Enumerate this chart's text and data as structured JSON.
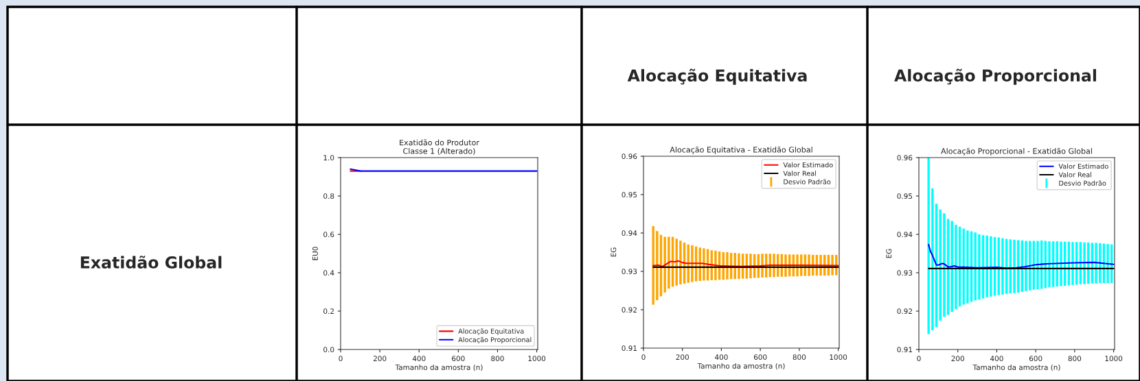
{
  "chart_data": [
    {
      "type": "other",
      "annotations": [
        "Alocação Equitativa",
        "Alocação Proporcional",
        "Exatidão Global"
      ]
    },
    {
      "type": "line",
      "title": "Exatidão do Produtor\nClasse 1 (Alterado)",
      "xlabel": "Tamanho da amostra (n)",
      "ylabel": "EU0",
      "xlim": [
        0,
        1005
      ],
      "ylim": [
        0.0,
        1.0
      ],
      "xticks": [
        0,
        200,
        400,
        600,
        800,
        1000
      ],
      "yticks": [
        {
          "value": 0,
          "label": "0.0"
        },
        0.2,
        0.4,
        0.6,
        0.8,
        {
          "value": 1,
          "label": "1.0"
        }
      ],
      "legend": "bottom right",
      "grid": false,
      "series": [
        {
          "name": "Alocação Equitativa",
          "color": "#ff0000",
          "x": [
            50,
            100
          ],
          "values": [
            0.93,
            0.93
          ]
        },
        {
          "name": "Alocação Proporcional",
          "color": "#0000ff",
          "x": [
            50,
            100,
            200,
            400,
            600,
            800,
            1000
          ],
          "values": [
            0.94,
            0.93,
            0.93,
            0.93,
            0.93,
            0.93,
            0.93
          ]
        }
      ]
    },
    {
      "type": "line",
      "title": "Alocação Equitativa - Exatidão Global",
      "xlabel": "Tamanho da amostra (n)",
      "ylabel": "EG",
      "xlim": [
        0,
        1005
      ],
      "ylim": [
        0.91,
        0.96
      ],
      "xticks": [
        0,
        200,
        400,
        600,
        800,
        1000
      ],
      "yticks": [
        0.91,
        0.92,
        0.93,
        0.94,
        0.95,
        0.96
      ],
      "legend": "top right",
      "grid": false,
      "series": [
        {
          "name": "Valor Estimado",
          "color": "#ff0000",
          "x": [
            50,
            80,
            90,
            100,
            120,
            140,
            160,
            180,
            200,
            220,
            300,
            340,
            400,
            500,
            600,
            650,
            800,
            1000
          ],
          "values": [
            0.9315,
            0.9316,
            0.9313,
            0.9313,
            0.932,
            0.9326,
            0.9325,
            0.9327,
            0.9323,
            0.9321,
            0.9321,
            0.9318,
            0.9314,
            0.9313,
            0.9314,
            0.9316,
            0.9316,
            0.9315
          ]
        },
        {
          "name": "Valor Real",
          "color": "#000000",
          "x": [
            50,
            1000
          ],
          "values": [
            0.9311,
            0.9311
          ]
        },
        {
          "name": "Desvio Padrão",
          "type": "bar",
          "color": "#ffa500",
          "x": [
            50,
            70,
            90,
            110,
            130,
            150,
            170,
            190,
            210,
            230,
            250,
            270,
            290,
            310,
            330,
            350,
            370,
            390,
            410,
            430,
            450,
            470,
            490,
            510,
            530,
            550,
            570,
            590,
            610,
            630,
            650,
            670,
            690,
            710,
            730,
            750,
            770,
            790,
            810,
            830,
            850,
            870,
            890,
            910,
            930,
            950,
            970,
            990
          ],
          "base": [
            0.9213,
            0.9225,
            0.9235,
            0.9245,
            0.9255,
            0.926,
            0.9263,
            0.9266,
            0.9268,
            0.927,
            0.9272,
            0.9274,
            0.9275,
            0.9276,
            0.9276,
            0.9277,
            0.9277,
            0.9278,
            0.9278,
            0.9279,
            0.928,
            0.928,
            0.928,
            0.9281,
            0.9281,
            0.9282,
            0.9283,
            0.9283,
            0.9284,
            0.9284,
            0.9285,
            0.9285,
            0.9286,
            0.9286,
            0.9286,
            0.9287,
            0.9287,
            0.9287,
            0.9288,
            0.9288,
            0.9288,
            0.9289,
            0.9289,
            0.9289,
            0.9289,
            0.9289,
            0.929,
            0.929
          ],
          "values": [
            0.0205,
            0.018,
            0.016,
            0.0145,
            0.0135,
            0.013,
            0.0122,
            0.0114,
            0.0107,
            0.01,
            0.0096,
            0.0091,
            0.0087,
            0.0084,
            0.0082,
            0.0078,
            0.0077,
            0.0074,
            0.0072,
            0.0071,
            0.0068,
            0.0068,
            0.0067,
            0.0065,
            0.0065,
            0.0064,
            0.0062,
            0.0062,
            0.0062,
            0.0062,
            0.0061,
            0.0061,
            0.0059,
            0.0059,
            0.0058,
            0.0057,
            0.0057,
            0.0057,
            0.0056,
            0.0056,
            0.0056,
            0.0054,
            0.0054,
            0.0054,
            0.0054,
            0.0054,
            0.0053,
            0.0053
          ]
        }
      ]
    },
    {
      "type": "line",
      "title": "Alocação Proporcional - Exatidão Global",
      "xlabel": "Tamanho da amostra (n)",
      "ylabel": "EG",
      "xlim": [
        0,
        1005
      ],
      "ylim": [
        0.91,
        0.96
      ],
      "xticks": [
        0,
        200,
        400,
        600,
        800,
        1000
      ],
      "yticks": [
        0.91,
        0.92,
        0.93,
        0.94,
        0.95,
        0.96
      ],
      "legend": "top right",
      "grid": false,
      "series": [
        {
          "name": "Valor Estimado",
          "color": "#0000ff",
          "x": [
            50,
            60,
            70,
            90,
            100,
            120,
            130,
            150,
            170,
            180,
            200,
            250,
            300,
            400,
            450,
            500,
            550,
            600,
            650,
            700,
            800,
            900,
            1000
          ],
          "values": [
            0.9373,
            0.9355,
            0.9345,
            0.932,
            0.932,
            0.9324,
            0.9323,
            0.9315,
            0.9316,
            0.9318,
            0.9315,
            0.9314,
            0.9313,
            0.9314,
            0.9312,
            0.9313,
            0.9316,
            0.9321,
            0.9323,
            0.9324,
            0.9326,
            0.9327,
            0.9322
          ]
        },
        {
          "name": "Valor Real",
          "color": "#000000",
          "x": [
            50,
            1000
          ],
          "values": [
            0.9311,
            0.9311
          ]
        },
        {
          "name": "Desvio Padrão",
          "type": "bar",
          "color": "#00ffff",
          "x": [
            50,
            70,
            90,
            110,
            130,
            150,
            170,
            190,
            210,
            230,
            250,
            270,
            290,
            310,
            330,
            350,
            370,
            390,
            410,
            430,
            450,
            470,
            490,
            510,
            530,
            550,
            570,
            590,
            610,
            630,
            650,
            670,
            690,
            710,
            730,
            750,
            770,
            790,
            810,
            830,
            850,
            870,
            890,
            910,
            930,
            950,
            970,
            990
          ],
          "base": [
            0.914,
            0.915,
            0.9158,
            0.9175,
            0.9185,
            0.919,
            0.9198,
            0.9205,
            0.9212,
            0.9217,
            0.922,
            0.9224,
            0.9228,
            0.923,
            0.9233,
            0.9236,
            0.9238,
            0.924,
            0.9242,
            0.9243,
            0.9245,
            0.9246,
            0.9247,
            0.9248,
            0.925,
            0.9252,
            0.9254,
            0.9256,
            0.9257,
            0.9258,
            0.926,
            0.9262,
            0.9263,
            0.9264,
            0.9265,
            0.9266,
            0.9267,
            0.9268,
            0.9269,
            0.927,
            0.927,
            0.9271,
            0.9272,
            0.9272,
            0.9273,
            0.9273,
            0.9273,
            0.9273
          ],
          "values": [
            0.046,
            0.037,
            0.0322,
            0.029,
            0.027,
            0.025,
            0.0237,
            0.022,
            0.0208,
            0.0198,
            0.019,
            0.0184,
            0.0177,
            0.017,
            0.0165,
            0.0161,
            0.0157,
            0.0153,
            0.015,
            0.0147,
            0.0143,
            0.0141,
            0.0139,
            0.0137,
            0.0134,
            0.0131,
            0.0129,
            0.0127,
            0.0126,
            0.0126,
            0.0123,
            0.012,
            0.0119,
            0.0118,
            0.0116,
            0.0115,
            0.0114,
            0.0112,
            0.0111,
            0.011,
            0.0109,
            0.0108,
            0.0106,
            0.0106,
            0.0104,
            0.0103,
            0.0102,
            0.0101
          ]
        }
      ]
    }
  ]
}
